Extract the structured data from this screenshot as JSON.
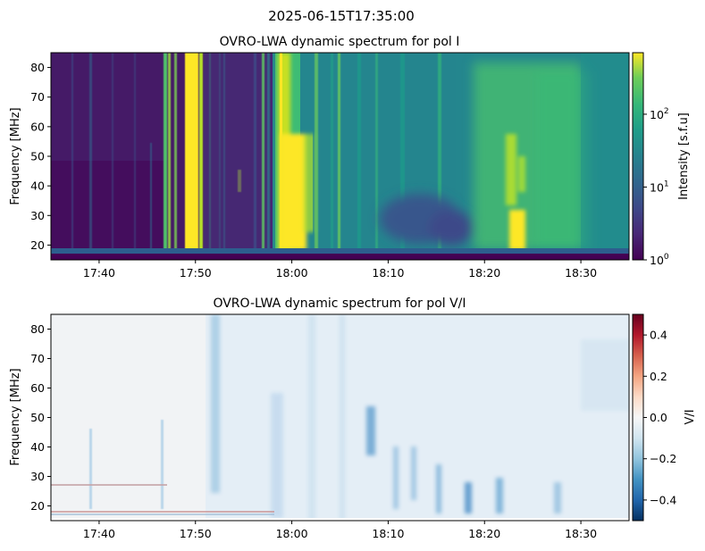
{
  "figure": {
    "suptitle": "2025-06-15T17:35:00"
  },
  "chart_data": [
    {
      "type": "heatmap",
      "title": "OVRO-LWA dynamic spectrum for pol I",
      "xlabel": "",
      "ylabel": "Frequency [MHz]",
      "x_range": [
        "17:35",
        "18:35"
      ],
      "ylim": [
        15,
        85
      ],
      "x_ticks": [
        "17:40",
        "17:50",
        "18:00",
        "18:10",
        "18:20",
        "18:30"
      ],
      "y_ticks": [
        20,
        30,
        40,
        50,
        60,
        70,
        80
      ],
      "colorbar": {
        "label": "Intensity [s.f.u]",
        "scale": "log",
        "range": [
          1,
          700
        ],
        "colormap": "viridis",
        "ticks": [
          {
            "base": "10",
            "exp": "0",
            "value": 1
          },
          {
            "base": "10",
            "exp": "1",
            "value": 10
          },
          {
            "base": "10",
            "exp": "2",
            "value": 100
          }
        ]
      },
      "features": [
        {
          "name": "radio burst group",
          "time_start": "17:46",
          "time_end": "17:52",
          "peak_intensity": 700
        },
        {
          "name": "radio burst",
          "time_start": "17:58",
          "time_end": "17:59",
          "peak_intensity": 300
        },
        {
          "name": "intense radio burst",
          "time_start": "17:59",
          "time_end": "18:06",
          "peak_intensity": 700
        },
        {
          "name": "bright patches",
          "time_start": "18:21",
          "time_end": "18:25",
          "freq_range": [
            17,
            60
          ],
          "peak_intensity": 500
        }
      ]
    },
    {
      "type": "heatmap",
      "title": "OVRO-LWA dynamic spectrum for pol V/I",
      "xlabel": "",
      "ylabel": "Frequency [MHz]",
      "x_range": [
        "17:35",
        "18:35"
      ],
      "ylim": [
        15,
        85
      ],
      "x_ticks": [
        "17:40",
        "17:50",
        "18:00",
        "18:10",
        "18:20",
        "18:30"
      ],
      "y_ticks": [
        20,
        30,
        40,
        50,
        60,
        70,
        80
      ],
      "colorbar": {
        "label": "V/I",
        "scale": "linear",
        "range": [
          -0.5,
          0.5
        ],
        "colormap": "RdBu_r",
        "ticks": [
          "0.4",
          "0.2",
          "0.0",
          "−0.2",
          "−0.4"
        ]
      }
    }
  ]
}
